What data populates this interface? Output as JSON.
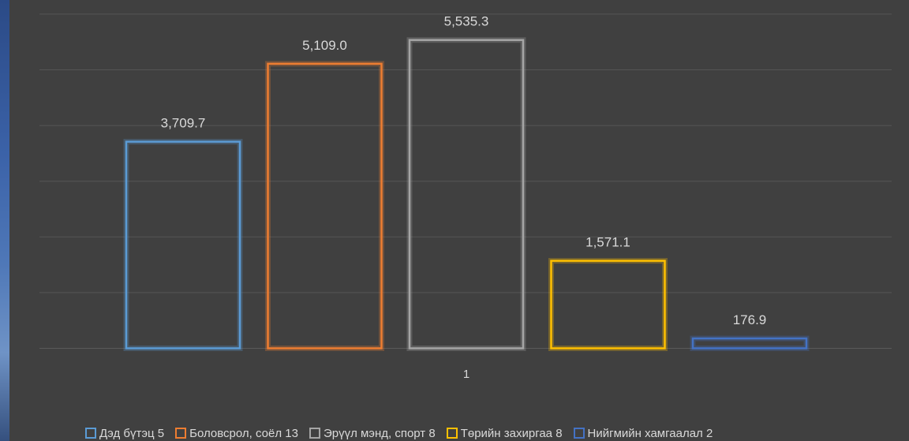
{
  "chart_data": {
    "type": "bar",
    "categories": [
      "1"
    ],
    "ylim": [
      0,
      6000
    ],
    "grid": true,
    "legend_position": "bottom",
    "series": [
      {
        "name": "Дэд бүтэц   5",
        "values": [
          3709.7
        ],
        "label": "3,709.7",
        "color": "#5b9bd5"
      },
      {
        "name": "Боловсрол, соёл   13",
        "values": [
          5109.0
        ],
        "label": "5,109.0",
        "color": "#ed7d31"
      },
      {
        "name": "Эрүүл мэнд, спорт   8",
        "values": [
          5535.3
        ],
        "label": "5,535.3",
        "color": "#a5a5a5"
      },
      {
        "name": "Төрийн захиргаа   8",
        "values": [
          1571.1
        ],
        "label": "1,571.1",
        "color": "#ffc000"
      },
      {
        "name": "Нийгмийн хамгаалал   2",
        "values": [
          176.9
        ],
        "label": "176.9",
        "color": "#4472c4"
      }
    ]
  }
}
